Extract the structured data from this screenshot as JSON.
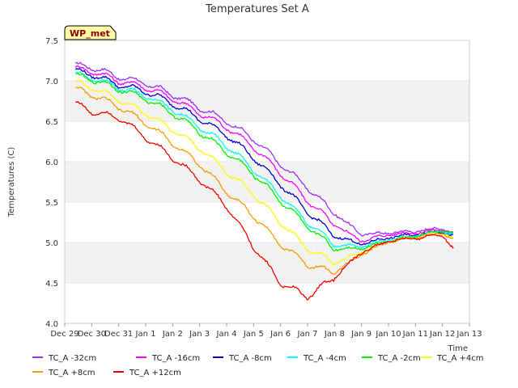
{
  "chart_data": {
    "type": "line",
    "title": "Temperatures Set A",
    "xlabel": "Time",
    "ylabel": "Temperatures (C)",
    "badge": "WP_met",
    "x_ticks": [
      "Dec 29",
      "Dec 30",
      "Dec 31",
      "Jan 1",
      "Jan 2",
      "Jan 3",
      "Jan 4",
      "Jan 5",
      "Jan 6",
      "Jan 7",
      "Jan 8",
      "Jan 9",
      "Jan 10",
      "Jan 11",
      "Jan 12",
      "Jan 13"
    ],
    "xlim_days": [
      0,
      15
    ],
    "y_ticks": [
      "4.0",
      "4.5",
      "5.0",
      "5.5",
      "6.0",
      "6.5",
      "7.0",
      "7.5"
    ],
    "ylim": [
      4.0,
      7.5
    ],
    "grid": "horizontal bands",
    "legend_position": "bottom",
    "series": [
      {
        "name": "TC_A -32cm",
        "color": "#9b30ff",
        "x": [
          0.4,
          1,
          2,
          3,
          4,
          5,
          6,
          7,
          8,
          9,
          10,
          11,
          12,
          13,
          14,
          14.4
        ],
        "y": [
          7.19,
          7.17,
          7.05,
          6.97,
          6.83,
          6.67,
          6.5,
          6.28,
          5.97,
          5.68,
          5.36,
          5.1,
          5.12,
          5.14,
          5.18,
          5.12
        ]
      },
      {
        "name": "TC_A -16cm",
        "color": "#ff00ff",
        "x": [
          0.4,
          1,
          2,
          3,
          4,
          5,
          6,
          7,
          8,
          9,
          10,
          11,
          12,
          13,
          14,
          14.4
        ],
        "y": [
          7.15,
          7.12,
          7.0,
          6.92,
          6.78,
          6.6,
          6.43,
          6.18,
          5.86,
          5.52,
          5.22,
          5.02,
          5.1,
          5.12,
          5.16,
          5.1
        ]
      },
      {
        "name": "TC_A -8cm",
        "color": "#0000cd",
        "x": [
          0.4,
          1,
          2,
          3,
          4,
          5,
          6,
          7,
          8,
          9,
          10,
          11,
          12,
          13,
          14,
          14.4
        ],
        "y": [
          7.12,
          7.08,
          6.95,
          6.87,
          6.72,
          6.53,
          6.33,
          6.05,
          5.72,
          5.38,
          5.08,
          4.98,
          5.06,
          5.1,
          5.14,
          5.08
        ]
      },
      {
        "name": "TC_A -4cm",
        "color": "#00ffff",
        "x": [
          0.4,
          1,
          2,
          3,
          4,
          5,
          6,
          7,
          8,
          9,
          10,
          11,
          12,
          13,
          14,
          14.4
        ],
        "y": [
          7.08,
          7.04,
          6.92,
          6.82,
          6.65,
          6.43,
          6.2,
          5.9,
          5.58,
          5.25,
          4.97,
          4.95,
          5.04,
          5.08,
          5.14,
          5.1
        ]
      },
      {
        "name": "TC_A -2cm",
        "color": "#00ee00",
        "x": [
          0.4,
          1,
          2,
          3,
          4,
          5,
          6,
          7,
          8,
          9,
          10,
          11,
          12,
          13,
          14,
          14.4
        ],
        "y": [
          7.06,
          7.02,
          6.9,
          6.78,
          6.6,
          6.37,
          6.12,
          5.85,
          5.52,
          5.2,
          4.92,
          4.93,
          5.02,
          5.08,
          5.15,
          5.12
        ]
      },
      {
        "name": "TC_A +4cm",
        "color": "#ffff00",
        "x": [
          0.4,
          1,
          2,
          3,
          4,
          5,
          6,
          7,
          8,
          9,
          10,
          11,
          12,
          13,
          14,
          14.4
        ],
        "y": [
          6.98,
          6.92,
          6.77,
          6.6,
          6.4,
          6.17,
          5.88,
          5.6,
          5.25,
          4.93,
          4.74,
          4.88,
          5.02,
          5.06,
          5.12,
          5.06
        ]
      },
      {
        "name": "TC_A +8cm",
        "color": "#ff9900",
        "x": [
          0.4,
          1,
          2,
          3,
          4,
          5,
          6,
          7,
          8,
          9,
          10,
          11,
          12,
          13,
          14,
          14.4
        ],
        "y": [
          6.9,
          6.83,
          6.68,
          6.48,
          6.23,
          5.97,
          5.63,
          5.33,
          4.98,
          4.73,
          4.63,
          4.85,
          5.01,
          5.06,
          5.12,
          5.04
        ]
      },
      {
        "name": "TC_A +12cm",
        "color": "#ee0000",
        "x": [
          0.4,
          1,
          2,
          3,
          4,
          5,
          6,
          7,
          8,
          9,
          10,
          11,
          12,
          13,
          14,
          14.4
        ],
        "y": [
          6.72,
          6.62,
          6.55,
          6.3,
          6.05,
          5.78,
          5.45,
          4.95,
          4.5,
          4.33,
          4.57,
          4.88,
          5.02,
          5.05,
          5.1,
          4.92
        ]
      }
    ]
  }
}
